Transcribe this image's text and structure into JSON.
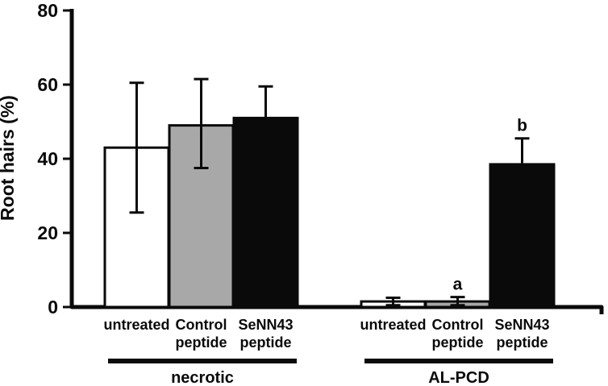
{
  "figure": {
    "background": "#ffffff",
    "ink_color": "#0a0a0a"
  },
  "chart_data": {
    "type": "bar",
    "title": "",
    "xlabel": "",
    "ylabel": "Root hairs (%)",
    "ylim": [
      0,
      80
    ],
    "yticks": [
      0,
      20,
      40,
      60,
      80
    ],
    "grid": false,
    "legend": "none",
    "bar_outline_color": "#0a0a0a",
    "groups": [
      {
        "label": "necrotic",
        "bars": [
          {
            "label": "untreated",
            "label_lines": [
              "untreated"
            ],
            "value": 43,
            "err_up": 17.5,
            "err_down": 17.5,
            "fill": "#ffffff",
            "annotation": ""
          },
          {
            "label": "Control peptide",
            "label_lines": [
              "Control",
              "peptide"
            ],
            "value": 49,
            "err_up": 12.5,
            "err_down": 11.5,
            "fill": "#a8a8a8",
            "annotation": ""
          },
          {
            "label": "SeNN43 peptide",
            "label_lines": [
              "SeNN43",
              "peptide"
            ],
            "value": 51,
            "err_up": 8.5,
            "err_down": 8.5,
            "fill": "#0a0a0a",
            "annotation": ""
          }
        ]
      },
      {
        "label": "AL-PCD",
        "bars": [
          {
            "label": "untreated",
            "label_lines": [
              "untreated"
            ],
            "value": 1.5,
            "err_up": 1,
            "err_down": 1,
            "fill": "#ffffff",
            "annotation": ""
          },
          {
            "label": "Control peptide",
            "label_lines": [
              "Control",
              "peptide"
            ],
            "value": 1.5,
            "err_up": 1.2,
            "err_down": 1,
            "fill": "#a8a8a8",
            "annotation": "a"
          },
          {
            "label": "SeNN43 peptide",
            "label_lines": [
              "SeNN43",
              "peptide"
            ],
            "value": 38.5,
            "err_up": 7,
            "err_down": 7,
            "fill": "#0a0a0a",
            "annotation": "b"
          }
        ]
      }
    ]
  }
}
